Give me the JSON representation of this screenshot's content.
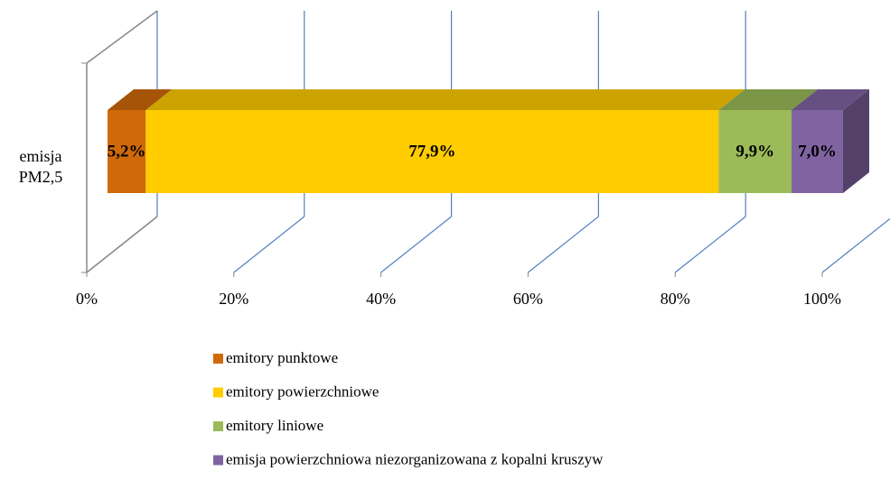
{
  "chart_data": {
    "type": "bar3d_stacked_horizontal",
    "categories": [
      "emisja PM2,5"
    ],
    "series": [
      {
        "name": "emitory punktowe",
        "color": "#d0690a",
        "values": [
          5.2
        ],
        "value_labels": [
          "5,2%"
        ]
      },
      {
        "name": "emitory powierzchniowe",
        "color": "#ffcc00",
        "values": [
          77.9
        ],
        "value_labels": [
          "77,9%"
        ]
      },
      {
        "name": "emitory liniowe",
        "color": "#9bbb59",
        "values": [
          9.9
        ],
        "value_labels": [
          "9,9%"
        ]
      },
      {
        "name": "emisja powierzchniowa niezorganizowana z kopalni kruszyw",
        "color": "#8064a2",
        "values": [
          7.0
        ],
        "value_labels": [
          "7,0%"
        ]
      }
    ],
    "xlim": [
      0,
      100
    ],
    "xticks": [
      {
        "value": 0,
        "label": "0%"
      },
      {
        "value": 20,
        "label": "20%"
      },
      {
        "value": 40,
        "label": "40%"
      },
      {
        "value": 60,
        "label": "60%"
      },
      {
        "value": 80,
        "label": "80%"
      },
      {
        "value": 100,
        "label": "100%"
      }
    ],
    "grid": true
  }
}
